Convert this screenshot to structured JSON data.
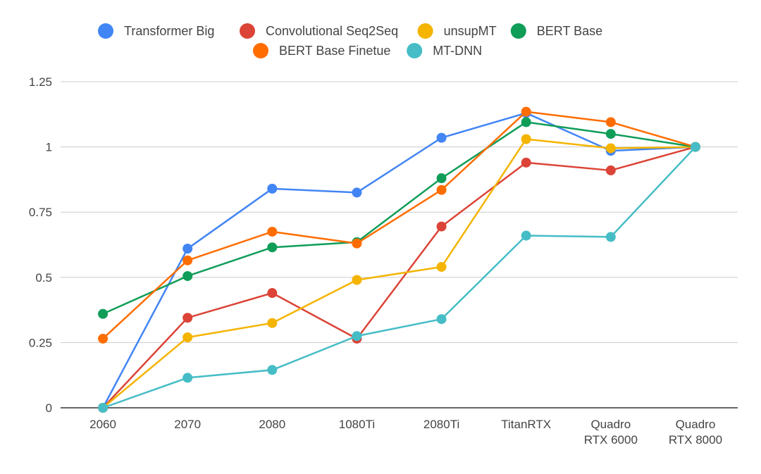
{
  "chart_data": {
    "type": "line",
    "title": "",
    "xlabel": "",
    "ylabel": "",
    "ylim": [
      0,
      1.25
    ],
    "yticks": [
      {
        "value": 0,
        "label": "0"
      },
      {
        "value": 0.25,
        "label": "0.25"
      },
      {
        "value": 0.5,
        "label": "0.5"
      },
      {
        "value": 0.75,
        "label": "0.75"
      },
      {
        "value": 1,
        "label": "1"
      },
      {
        "value": 1.25,
        "label": "1.25"
      }
    ],
    "grid": true,
    "legend_position": "top",
    "categories": [
      [
        "2060"
      ],
      [
        "2070"
      ],
      [
        "2080"
      ],
      [
        "1080Ti"
      ],
      [
        "2080Ti"
      ],
      [
        "TitanRTX"
      ],
      [
        "Quadro",
        "RTX 6000"
      ],
      [
        "Quadro",
        "RTX 8000"
      ]
    ],
    "series": [
      {
        "name": "Transformer Big",
        "color": "#4285f4",
        "values": [
          0.0,
          0.61,
          0.84,
          0.825,
          1.035,
          1.13,
          0.985,
          1.0
        ]
      },
      {
        "name": "Convolutional Seq2Seq",
        "color": "#db4437",
        "values": [
          0.0,
          0.345,
          0.44,
          0.265,
          0.695,
          0.94,
          0.91,
          1.0
        ]
      },
      {
        "name": "unsupMT",
        "color": "#f4b400",
        "values": [
          0.0,
          0.27,
          0.325,
          0.49,
          0.54,
          1.03,
          0.995,
          1.0
        ]
      },
      {
        "name": "BERT Base",
        "color": "#0f9d58",
        "values": [
          0.36,
          0.505,
          0.615,
          0.635,
          0.88,
          1.095,
          1.05,
          1.0
        ]
      },
      {
        "name": "BERT Base Finetue",
        "color": "#ff6d00",
        "values": [
          0.265,
          0.565,
          0.675,
          0.63,
          0.835,
          1.135,
          1.095,
          1.0
        ]
      },
      {
        "name": "MT-DNN",
        "color": "#46bdc6",
        "values": [
          0.0,
          0.115,
          0.145,
          0.275,
          0.34,
          0.66,
          0.655,
          1.0
        ]
      }
    ]
  }
}
